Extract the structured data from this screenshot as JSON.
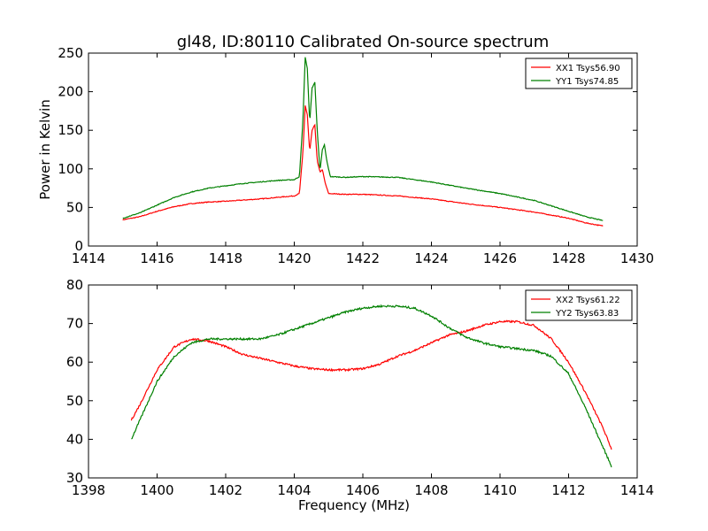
{
  "title": "gl48, ID:80110 Calibrated On-source spectrum",
  "chart_data": [
    {
      "type": "line",
      "panel": "top",
      "ylabel": "Power in Kelvin",
      "xlabel": "",
      "xlim": [
        1414,
        1430
      ],
      "ylim": [
        0,
        250
      ],
      "xticks": [
        "1414",
        "1416",
        "1418",
        "1420",
        "1422",
        "1424",
        "1426",
        "1428",
        "1430"
      ],
      "yticks": [
        "0",
        "50",
        "100",
        "150",
        "200",
        "250"
      ],
      "legend_position": "top-right",
      "series": [
        {
          "name": "XX1 Tsys56.90",
          "color": "#ff0000",
          "points": [
            [
              1415.0,
              34
            ],
            [
              1415.5,
              38
            ],
            [
              1416.0,
              45
            ],
            [
              1416.5,
              51
            ],
            [
              1417.0,
              55
            ],
            [
              1417.5,
              57
            ],
            [
              1418.0,
              58
            ],
            [
              1418.5,
              59.5
            ],
            [
              1419.0,
              61
            ],
            [
              1419.5,
              63
            ],
            [
              1420.0,
              65
            ],
            [
              1420.15,
              68
            ],
            [
              1420.25,
              120
            ],
            [
              1420.32,
              182
            ],
            [
              1420.38,
              170
            ],
            [
              1420.45,
              122
            ],
            [
              1420.52,
              150
            ],
            [
              1420.6,
              157
            ],
            [
              1420.67,
              110
            ],
            [
              1420.75,
              96
            ],
            [
              1420.82,
              99
            ],
            [
              1420.9,
              82
            ],
            [
              1421.0,
              68
            ],
            [
              1421.5,
              67
            ],
            [
              1422.0,
              67
            ],
            [
              1423.0,
              65
            ],
            [
              1424.0,
              61
            ],
            [
              1425.0,
              55
            ],
            [
              1426.0,
              50
            ],
            [
              1427.0,
              44
            ],
            [
              1428.0,
              36
            ],
            [
              1428.5,
              30
            ],
            [
              1429.0,
              26
            ]
          ]
        },
        {
          "name": "YY1 Tsys74.85",
          "color": "#008000",
          "points": [
            [
              1415.0,
              36
            ],
            [
              1415.5,
              43
            ],
            [
              1416.0,
              53
            ],
            [
              1416.5,
              63
            ],
            [
              1417.0,
              70
            ],
            [
              1417.5,
              75
            ],
            [
              1418.0,
              78
            ],
            [
              1418.5,
              81
            ],
            [
              1419.0,
              83
            ],
            [
              1419.5,
              85
            ],
            [
              1420.0,
              86
            ],
            [
              1420.15,
              90
            ],
            [
              1420.25,
              160
            ],
            [
              1420.32,
              245
            ],
            [
              1420.38,
              230
            ],
            [
              1420.45,
              160
            ],
            [
              1420.52,
              205
            ],
            [
              1420.6,
              212
            ],
            [
              1420.67,
              150
            ],
            [
              1420.75,
              97
            ],
            [
              1420.82,
              125
            ],
            [
              1420.88,
              131
            ],
            [
              1420.95,
              110
            ],
            [
              1421.05,
              90
            ],
            [
              1421.5,
              89
            ],
            [
              1422.0,
              90
            ],
            [
              1423.0,
              89
            ],
            [
              1424.0,
              83
            ],
            [
              1425.0,
              75
            ],
            [
              1426.0,
              68
            ],
            [
              1427.0,
              59
            ],
            [
              1428.0,
              45
            ],
            [
              1428.5,
              38
            ],
            [
              1429.0,
              33
            ]
          ]
        }
      ]
    },
    {
      "type": "line",
      "panel": "bottom",
      "ylabel": "",
      "xlabel": "Frequency (MHz)",
      "xlim": [
        1398,
        1414
      ],
      "ylim": [
        30,
        80
      ],
      "xticks": [
        "1398",
        "1400",
        "1402",
        "1404",
        "1406",
        "1408",
        "1410",
        "1412",
        "1414"
      ],
      "yticks": [
        "30",
        "40",
        "50",
        "60",
        "70",
        "80"
      ],
      "legend_position": "top-right",
      "series": [
        {
          "name": "XX2 Tsys61.22",
          "color": "#ff0000",
          "points": [
            [
              1399.25,
              45
            ],
            [
              1399.5,
              49
            ],
            [
              1400.0,
              58
            ],
            [
              1400.5,
              64
            ],
            [
              1401.0,
              66
            ],
            [
              1401.5,
              65.5
            ],
            [
              1402.0,
              64
            ],
            [
              1402.5,
              62
            ],
            [
              1403.0,
              61
            ],
            [
              1403.5,
              60
            ],
            [
              1404.0,
              59
            ],
            [
              1404.5,
              58.3
            ],
            [
              1405.0,
              58
            ],
            [
              1405.5,
              58
            ],
            [
              1406.0,
              58.3
            ],
            [
              1406.5,
              59.5
            ],
            [
              1407.0,
              61.5
            ],
            [
              1407.5,
              63
            ],
            [
              1408.0,
              65
            ],
            [
              1408.5,
              67
            ],
            [
              1409.0,
              68
            ],
            [
              1409.5,
              69.5
            ],
            [
              1410.0,
              70.5
            ],
            [
              1410.5,
              70.5
            ],
            [
              1411.0,
              69.5
            ],
            [
              1411.5,
              66
            ],
            [
              1412.0,
              60
            ],
            [
              1412.5,
              52
            ],
            [
              1413.0,
              43
            ],
            [
              1413.25,
              37.5
            ]
          ]
        },
        {
          "name": "YY2 Tsys63.83",
          "color": "#008000",
          "points": [
            [
              1399.25,
              40
            ],
            [
              1399.5,
              45
            ],
            [
              1400.0,
              55
            ],
            [
              1400.5,
              61.5
            ],
            [
              1401.0,
              65
            ],
            [
              1401.5,
              66
            ],
            [
              1402.0,
              66
            ],
            [
              1402.5,
              66
            ],
            [
              1403.0,
              66
            ],
            [
              1403.5,
              67
            ],
            [
              1404.0,
              68.5
            ],
            [
              1404.5,
              70
            ],
            [
              1405.0,
              71.5
            ],
            [
              1405.5,
              73
            ],
            [
              1406.0,
              74
            ],
            [
              1406.5,
              74.5
            ],
            [
              1407.0,
              74.5
            ],
            [
              1407.5,
              74
            ],
            [
              1408.0,
              72
            ],
            [
              1408.5,
              69
            ],
            [
              1409.0,
              66.5
            ],
            [
              1409.5,
              65
            ],
            [
              1410.0,
              64
            ],
            [
              1410.5,
              63.5
            ],
            [
              1411.0,
              63
            ],
            [
              1411.5,
              61.5
            ],
            [
              1412.0,
              57
            ],
            [
              1412.5,
              48
            ],
            [
              1413.0,
              38
            ],
            [
              1413.25,
              33
            ]
          ]
        }
      ]
    }
  ]
}
